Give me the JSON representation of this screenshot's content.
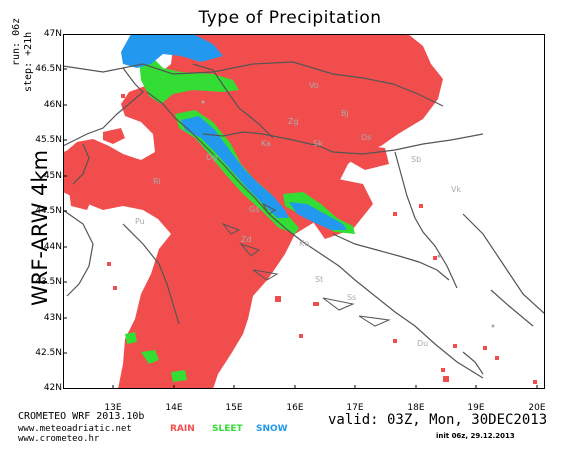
{
  "title": "Type of Precipitation",
  "model": "WRF-ARW 4km",
  "run": "run: 06z",
  "step": "step: +21h",
  "footer": {
    "line1": "CROMETEO WRF 2013.10b",
    "line2": "www.meteoadriatic.net",
    "line3": "www.crometeo.hr"
  },
  "legend": [
    {
      "label": "RAIN",
      "color": "#f24d4d"
    },
    {
      "label": "SLEET",
      "color": "#33dd33"
    },
    {
      "label": "SNOW",
      "color": "#2299ee"
    }
  ],
  "valid": "valid: 03Z, Mon, 30DEC2013",
  "info": "init 06z, 29.12.2013",
  "lat_labels": [
    "47N",
    "46.5N",
    "46N",
    "45.5N",
    "45N",
    "44.5N",
    "44N",
    "43.5N",
    "43N",
    "42.5N",
    "42N"
  ],
  "lon_labels": [
    "13E",
    "14E",
    "15E",
    "16E",
    "17E",
    "18E",
    "19E",
    "20E"
  ],
  "cities": [
    "Vo",
    "Bj",
    "Zg",
    "Ka",
    "Sk",
    "Og",
    "Os",
    "Gs",
    "Zd",
    "Kn",
    "Sb",
    "Ri",
    "St",
    "Ss",
    "Du",
    "Pu",
    "Vk"
  ],
  "colors": {
    "rain": "#f24d4d",
    "sleet": "#33dd33",
    "snow": "#2299ee",
    "border": "#555555",
    "city": "#aaaaaa"
  }
}
